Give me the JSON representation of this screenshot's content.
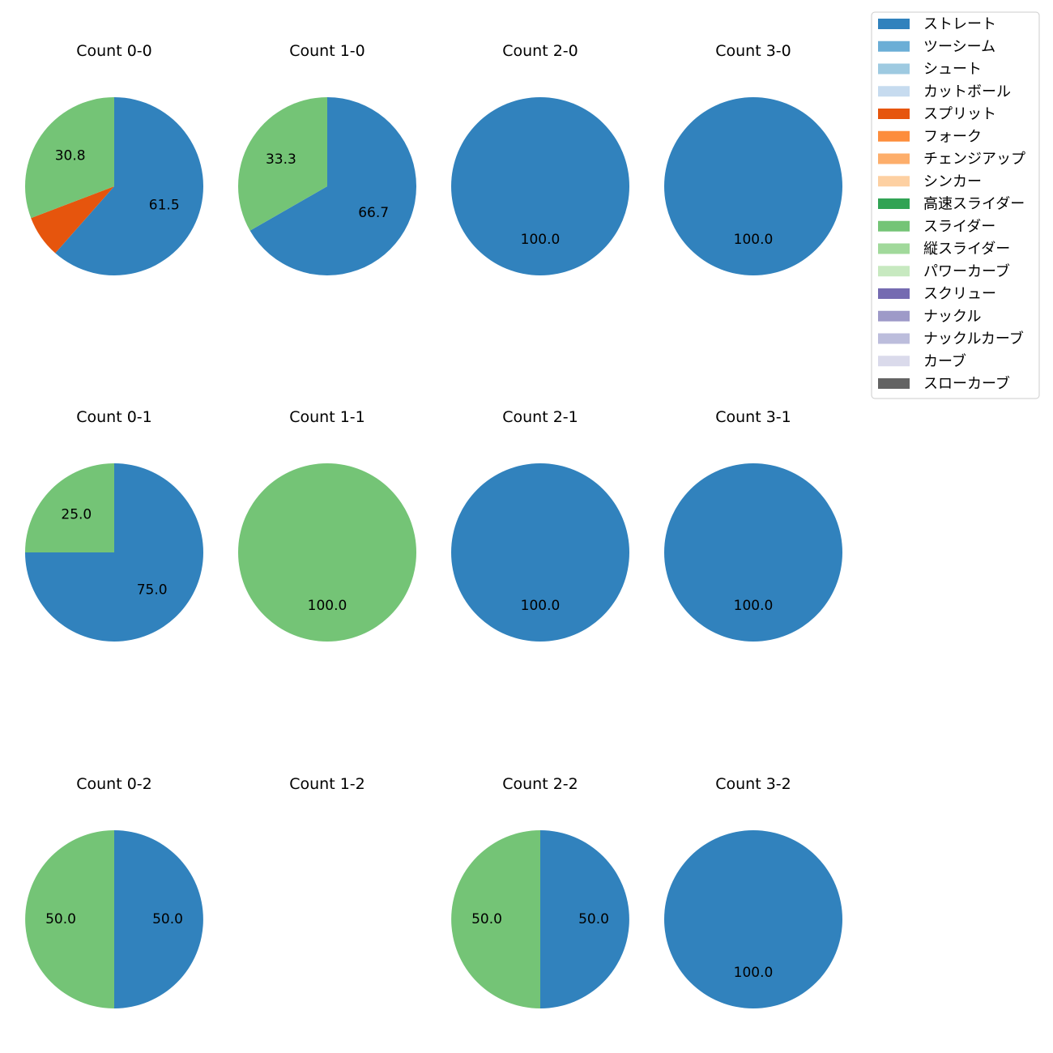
{
  "chart_data": {
    "type": "pie",
    "legend": {
      "placement": "top-right",
      "entries": [
        {
          "label": "ストレート",
          "color": "#3182bd"
        },
        {
          "label": "ツーシーム",
          "color": "#6baed6"
        },
        {
          "label": "シュート",
          "color": "#9ecae1"
        },
        {
          "label": "カットボール",
          "color": "#c6dbef"
        },
        {
          "label": "スプリット",
          "color": "#e6550d"
        },
        {
          "label": "フォーク",
          "color": "#fd8d3c"
        },
        {
          "label": "チェンジアップ",
          "color": "#fdae6b"
        },
        {
          "label": "シンカー",
          "color": "#fdd0a2"
        },
        {
          "label": "高速スライダー",
          "color": "#31a354"
        },
        {
          "label": "スライダー",
          "color": "#74c476"
        },
        {
          "label": "縦スライダー",
          "color": "#a1d99b"
        },
        {
          "label": "パワーカーブ",
          "color": "#c7e9c0"
        },
        {
          "label": "スクリュー",
          "color": "#756bb1"
        },
        {
          "label": "ナックル",
          "color": "#9e9ac8"
        },
        {
          "label": "ナックルカーブ",
          "color": "#bcbddc"
        },
        {
          "label": "カーブ",
          "color": "#dadaeb"
        },
        {
          "label": "スローカーブ",
          "color": "#636363"
        }
      ]
    },
    "pies": [
      {
        "title": "Count 0-0",
        "slices": [
          {
            "pitch": "ストレート",
            "value": 61.5,
            "label": "61.5"
          },
          {
            "pitch": "スプリット",
            "value": 7.7,
            "label": ""
          },
          {
            "pitch": "スライダー",
            "value": 30.8,
            "label": "30.8"
          }
        ]
      },
      {
        "title": "Count 1-0",
        "slices": [
          {
            "pitch": "ストレート",
            "value": 66.7,
            "label": "66.7"
          },
          {
            "pitch": "スライダー",
            "value": 33.3,
            "label": "33.3"
          }
        ]
      },
      {
        "title": "Count 2-0",
        "slices": [
          {
            "pitch": "ストレート",
            "value": 100.0,
            "label": "100.0"
          }
        ]
      },
      {
        "title": "Count 3-0",
        "slices": [
          {
            "pitch": "ストレート",
            "value": 100.0,
            "label": "100.0"
          }
        ]
      },
      {
        "title": "Count 0-1",
        "slices": [
          {
            "pitch": "ストレート",
            "value": 75.0,
            "label": "75.0"
          },
          {
            "pitch": "スライダー",
            "value": 25.0,
            "label": "25.0"
          }
        ]
      },
      {
        "title": "Count 1-1",
        "slices": [
          {
            "pitch": "スライダー",
            "value": 100.0,
            "label": "100.0"
          }
        ]
      },
      {
        "title": "Count 2-1",
        "slices": [
          {
            "pitch": "ストレート",
            "value": 100.0,
            "label": "100.0"
          }
        ]
      },
      {
        "title": "Count 3-1",
        "slices": [
          {
            "pitch": "ストレート",
            "value": 100.0,
            "label": "100.0"
          }
        ]
      },
      {
        "title": "Count 0-2",
        "slices": [
          {
            "pitch": "ストレート",
            "value": 50.0,
            "label": "50.0"
          },
          {
            "pitch": "スライダー",
            "value": 50.0,
            "label": "50.0"
          }
        ]
      },
      {
        "title": "Count 1-2",
        "slices": []
      },
      {
        "title": "Count 2-2",
        "slices": [
          {
            "pitch": "ストレート",
            "value": 50.0,
            "label": "50.0"
          },
          {
            "pitch": "スライダー",
            "value": 50.0,
            "label": "50.0"
          }
        ]
      },
      {
        "title": "Count 3-2",
        "slices": [
          {
            "pitch": "ストレート",
            "value": 100.0,
            "label": "100.0"
          }
        ]
      }
    ]
  }
}
